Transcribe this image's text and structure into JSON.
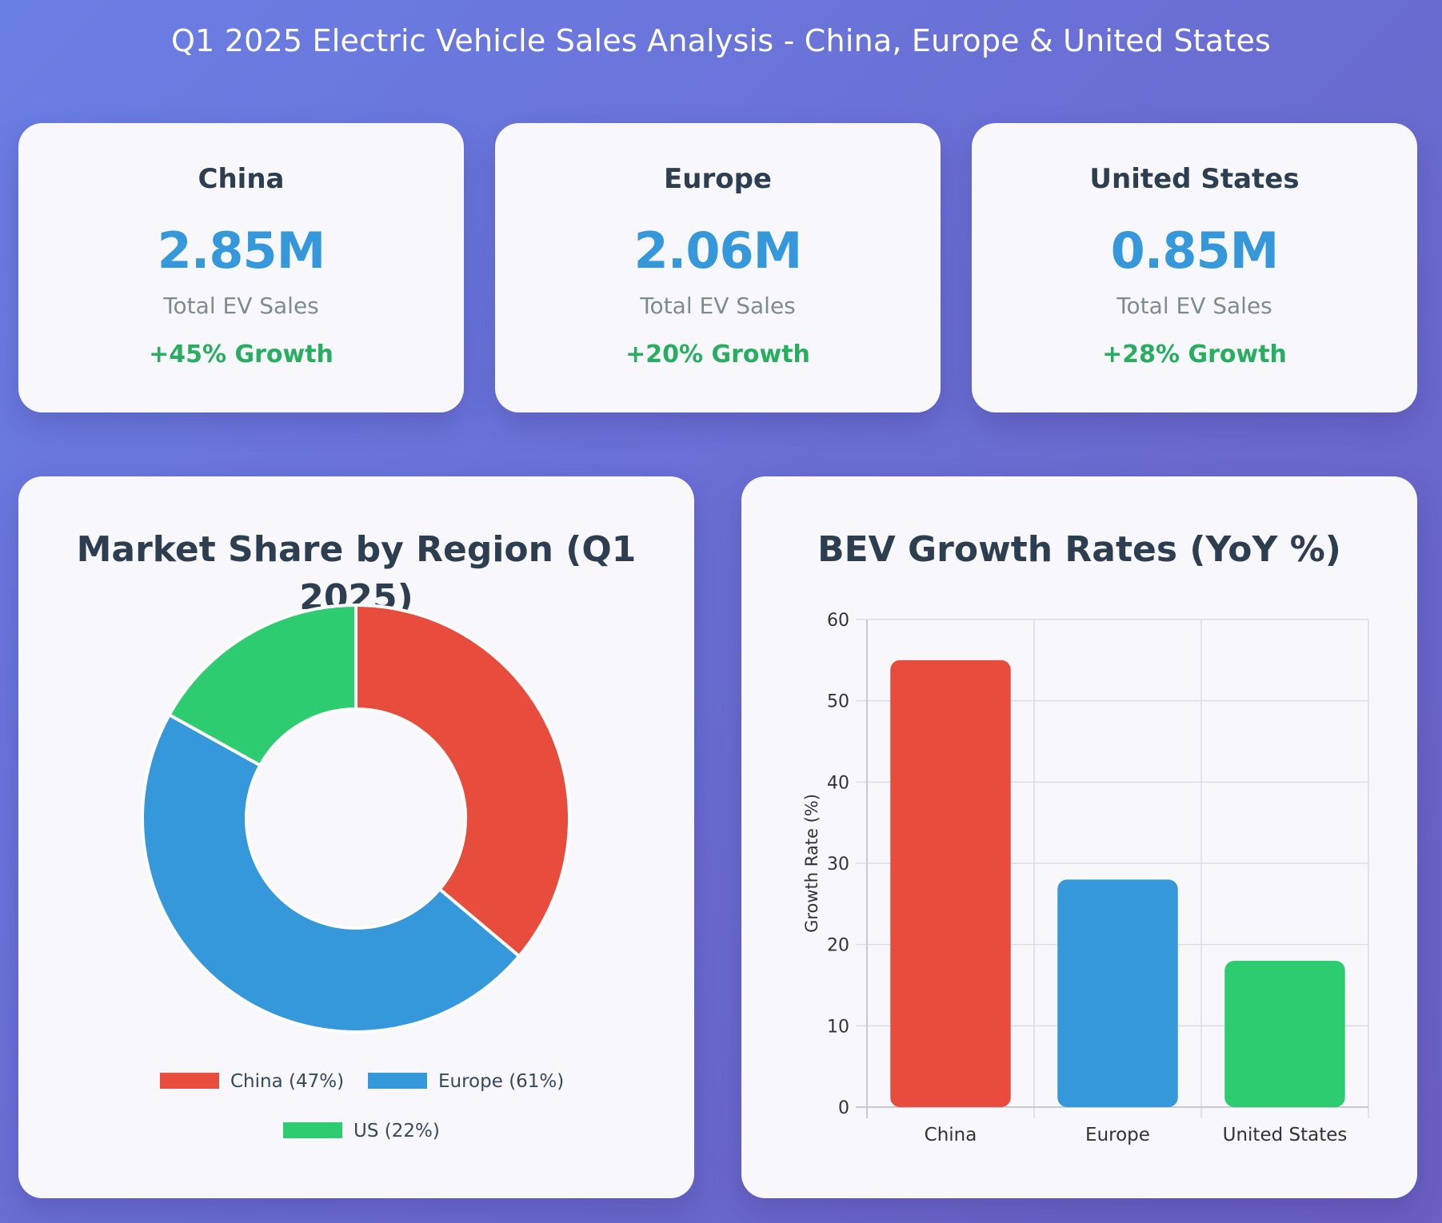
{
  "page": {
    "title": "Q1 2025 Electric Vehicle Sales Analysis - China, Europe & United States"
  },
  "stat_cards": [
    {
      "region": "China",
      "value": "2.85M",
      "caption": "Total EV Sales",
      "growth": "+45% Growth"
    },
    {
      "region": "Europe",
      "value": "2.06M",
      "caption": "Total EV Sales",
      "growth": "+20% Growth"
    },
    {
      "region": "United States",
      "value": "0.85M",
      "caption": "Total EV Sales",
      "growth": "+28% Growth"
    }
  ],
  "colors": {
    "china": "#e74c3c",
    "europe": "#3498db",
    "us": "#2ecc71",
    "accent_value": "#3498db",
    "growth_text": "#27ae60",
    "heading": "#2c3e50"
  },
  "chart_data": [
    {
      "type": "pie",
      "variant": "doughnut",
      "title": "Market Share by Region (Q1 2025)",
      "labels": [
        "China (47%)",
        "Europe (61%)",
        "US (22%)"
      ],
      "values": [
        47,
        61,
        22
      ],
      "colors": [
        "#e74c3c",
        "#3498db",
        "#2ecc71"
      ],
      "legend_position": "bottom"
    },
    {
      "type": "bar",
      "title": "BEV Growth Rates (YoY %)",
      "categories": [
        "China",
        "Europe",
        "United States"
      ],
      "series": [
        {
          "values": [
            55,
            28,
            18
          ]
        }
      ],
      "colors": [
        "#e74c3c",
        "#3498db",
        "#2ecc71"
      ],
      "xlabel": "",
      "ylabel": "Growth Rate (%)",
      "ylim": [
        0,
        60
      ],
      "yticks": [
        0,
        10,
        20,
        30,
        40,
        50,
        60
      ],
      "grid": true
    }
  ]
}
